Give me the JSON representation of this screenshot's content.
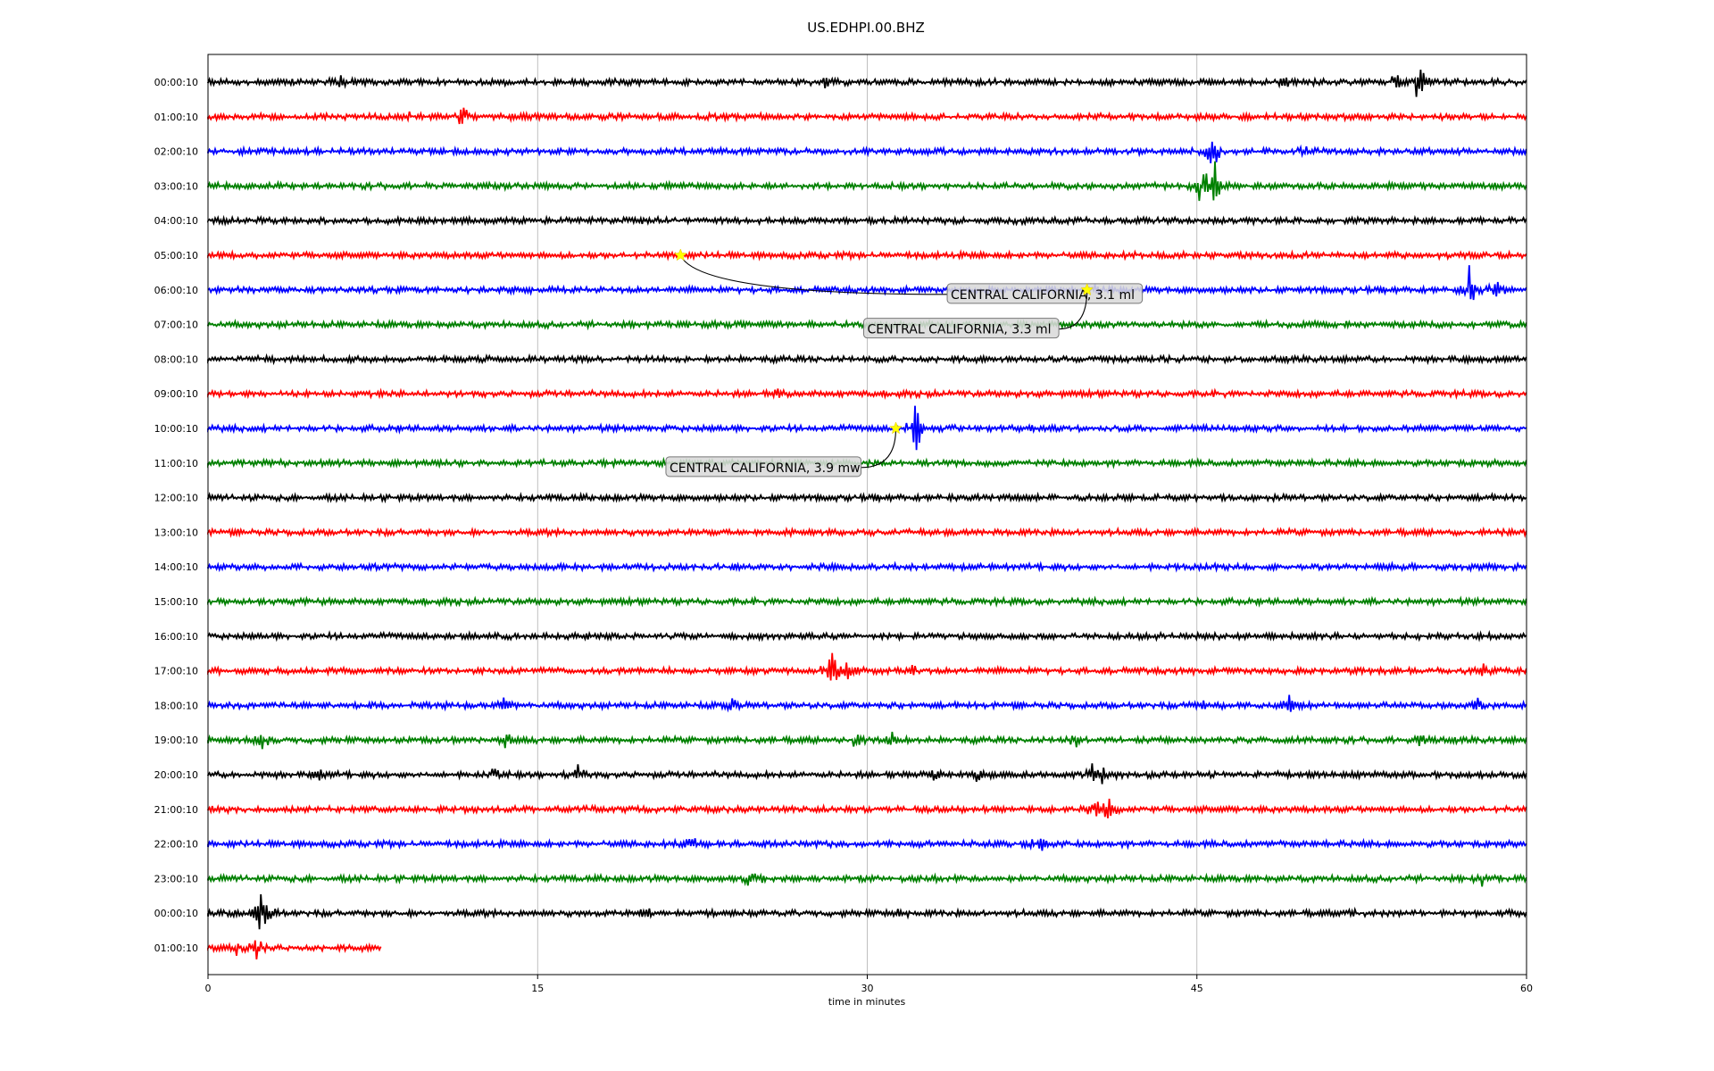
{
  "chart_data": {
    "type": "line",
    "title": "US.EDHPI.00.BHZ",
    "xlabel": "time in minutes",
    "ylabel": "",
    "xlim": [
      0,
      60
    ],
    "x_ticks": [
      "0",
      "15",
      "30",
      "45",
      "60"
    ],
    "x_tick_values": [
      0,
      15,
      30,
      45,
      60
    ],
    "grid": "vertical lines at major x ticks",
    "trace_colors": [
      "#000000",
      "#ff0000",
      "#0000ff",
      "#008000"
    ],
    "rows": [
      {
        "label": "00:00:10",
        "duration_min": 60,
        "bursts": [
          [
            6,
            12
          ],
          [
            28,
            8
          ],
          [
            49,
            9
          ],
          [
            54,
            14
          ],
          [
            55.1,
            28
          ]
        ]
      },
      {
        "label": "01:00:10",
        "duration_min": 60,
        "bursts": [
          [
            9,
            10
          ],
          [
            11.6,
            12
          ]
        ]
      },
      {
        "label": "02:00:10",
        "duration_min": 60,
        "bursts": [
          [
            45.7,
            25
          ],
          [
            50,
            8
          ]
        ]
      },
      {
        "label": "03:00:10",
        "duration_min": 60,
        "bursts": [
          [
            45.2,
            30
          ],
          [
            45.8,
            35
          ]
        ]
      },
      {
        "label": "04:00:10",
        "duration_min": 60,
        "bursts": []
      },
      {
        "label": "05:00:10",
        "duration_min": 60,
        "bursts": []
      },
      {
        "label": "06:00:10",
        "duration_min": 60,
        "bursts": [
          [
            40.5,
            8
          ],
          [
            57.4,
            25
          ],
          [
            58.6,
            20
          ]
        ]
      },
      {
        "label": "07:00:10",
        "duration_min": 60,
        "bursts": []
      },
      {
        "label": "08:00:10",
        "duration_min": 60,
        "bursts": []
      },
      {
        "label": "09:00:10",
        "duration_min": 60,
        "bursts": [
          [
            26,
            6
          ]
        ]
      },
      {
        "label": "10:00:10",
        "duration_min": 60,
        "bursts": [
          [
            32.2,
            35
          ]
        ]
      },
      {
        "label": "11:00:10",
        "duration_min": 60,
        "bursts": []
      },
      {
        "label": "12:00:10",
        "duration_min": 60,
        "bursts": []
      },
      {
        "label": "13:00:10",
        "duration_min": 60,
        "bursts": []
      },
      {
        "label": "14:00:10",
        "duration_min": 60,
        "bursts": []
      },
      {
        "label": "15:00:10",
        "duration_min": 60,
        "bursts": []
      },
      {
        "label": "16:00:10",
        "duration_min": 60,
        "bursts": []
      },
      {
        "label": "17:00:10",
        "duration_min": 60,
        "bursts": [
          [
            28.4,
            35
          ],
          [
            29.2,
            12
          ],
          [
            32,
            8
          ],
          [
            58,
            8
          ]
        ]
      },
      {
        "label": "18:00:10",
        "duration_min": 60,
        "bursts": [
          [
            13.5,
            10
          ],
          [
            23.8,
            10
          ],
          [
            45.3,
            8
          ],
          [
            49.2,
            12
          ],
          [
            57.8,
            10
          ]
        ]
      },
      {
        "label": "19:00:10",
        "duration_min": 60,
        "bursts": [
          [
            2.5,
            12
          ],
          [
            13.6,
            10
          ],
          [
            29.5,
            10
          ],
          [
            31.1,
            10
          ],
          [
            39.5,
            10
          ],
          [
            55.2,
            8
          ]
        ]
      },
      {
        "label": "20:00:10",
        "duration_min": 60,
        "bursts": [
          [
            5,
            8
          ],
          [
            13,
            8
          ],
          [
            16.8,
            14
          ],
          [
            33,
            8
          ],
          [
            35,
            10
          ],
          [
            40.2,
            14
          ],
          [
            40.8,
            12
          ]
        ]
      },
      {
        "label": "21:00:10",
        "duration_min": 60,
        "bursts": [
          [
            40.3,
            18
          ],
          [
            41,
            14
          ]
        ]
      },
      {
        "label": "22:00:10",
        "duration_min": 60,
        "bursts": [
          [
            22,
            14
          ],
          [
            37.5,
            10
          ],
          [
            38,
            10
          ]
        ]
      },
      {
        "label": "23:00:10",
        "duration_min": 60,
        "bursts": [
          [
            24.5,
            8
          ],
          [
            25,
            8
          ],
          [
            58,
            8
          ]
        ]
      },
      {
        "label": "00:00:10",
        "duration_min": 60,
        "bursts": [
          [
            2.4,
            25
          ],
          [
            2.7,
            15
          ],
          [
            20,
            6
          ],
          [
            31.5,
            6
          ],
          [
            52,
            10
          ]
        ]
      },
      {
        "label": "01:00:10",
        "duration_min": 7.9,
        "bursts": [
          [
            1.3,
            12
          ],
          [
            2.2,
            14
          ]
        ]
      }
    ],
    "events": [
      {
        "label": "CENTRAL CALIFORNIA, 3.1 ml",
        "row_index": 5,
        "x_min": 21.5,
        "label_x_min": 33.8,
        "label_row": 6.13
      },
      {
        "label": "CENTRAL CALIFORNIA, 3.3 ml",
        "row_index": 6,
        "x_min": 40.0,
        "label_x_min": 30.0,
        "label_row": 7.13
      },
      {
        "label": "CENTRAL CALIFORNIA, 3.9 mw",
        "row_index": 10,
        "x_min": 31.3,
        "label_x_min": 21.0,
        "label_row": 11.13
      }
    ],
    "event_marker_color": "#ffff00",
    "annotation_box_fill": "#d9d9d9",
    "annotation_box_stroke": "#777777"
  }
}
